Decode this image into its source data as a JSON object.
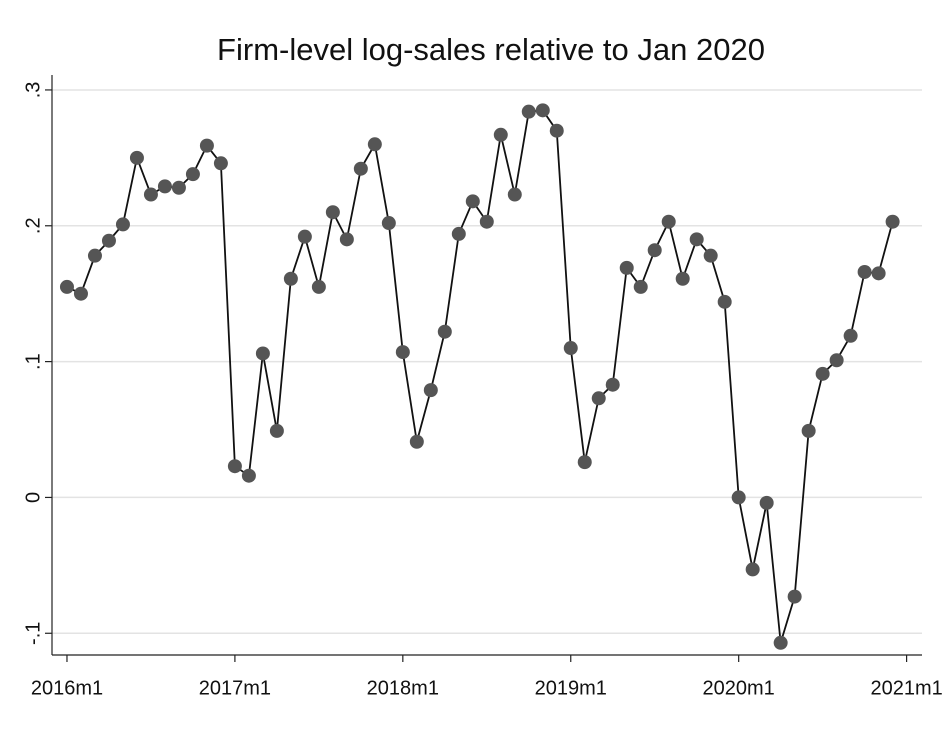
{
  "chart_data": {
    "type": "line",
    "title": "Firm-level log-sales relative to Jan 2020",
    "x": [
      0,
      1,
      2,
      3,
      4,
      5,
      6,
      7,
      8,
      9,
      10,
      11,
      12,
      13,
      14,
      15,
      16,
      17,
      18,
      19,
      20,
      21,
      22,
      23,
      24,
      25,
      26,
      27,
      28,
      29,
      30,
      31,
      32,
      33,
      34,
      35,
      36,
      37,
      38,
      39,
      40,
      41,
      42,
      43,
      44,
      45,
      46,
      47,
      48,
      49,
      50,
      51,
      52,
      53,
      54,
      55,
      56,
      57,
      58,
      59
    ],
    "values": [
      0.155,
      0.15,
      0.178,
      0.189,
      0.201,
      0.25,
      0.223,
      0.229,
      0.228,
      0.238,
      0.259,
      0.246,
      0.023,
      0.016,
      0.106,
      0.049,
      0.161,
      0.192,
      0.155,
      0.21,
      0.19,
      0.242,
      0.26,
      0.202,
      0.107,
      0.041,
      0.079,
      0.122,
      0.194,
      0.218,
      0.203,
      0.267,
      0.223,
      0.284,
      0.285,
      0.27,
      0.11,
      0.026,
      0.073,
      0.083,
      0.169,
      0.155,
      0.182,
      0.203,
      0.161,
      0.19,
      0.178,
      0.144,
      0.0,
      -0.053,
      -0.004,
      -0.107,
      -0.073,
      0.049,
      0.091,
      0.101,
      0.119,
      0.166,
      0.165,
      0.203
    ],
    "color": "#555555",
    "line_color": "#111111",
    "xlim": [
      -1.07,
      61.1
    ],
    "xticks": [
      {
        "value": 0,
        "label": "2016m1"
      },
      {
        "value": 12,
        "label": "2017m1"
      },
      {
        "value": 24,
        "label": "2018m1"
      },
      {
        "value": 36,
        "label": "2019m1"
      },
      {
        "value": 48,
        "label": "2020m1"
      },
      {
        "value": 60,
        "label": "2021m1"
      }
    ],
    "ylim": [
      -0.116,
      0.311
    ],
    "yticks": [
      {
        "value": -0.1,
        "label": "-.1"
      },
      0,
      {
        "value": 0.1,
        "label": ".1"
      },
      {
        "value": 0.2,
        "label": ".2"
      },
      {
        "value": 0.3,
        "label": ".3"
      }
    ],
    "grid": true
  }
}
